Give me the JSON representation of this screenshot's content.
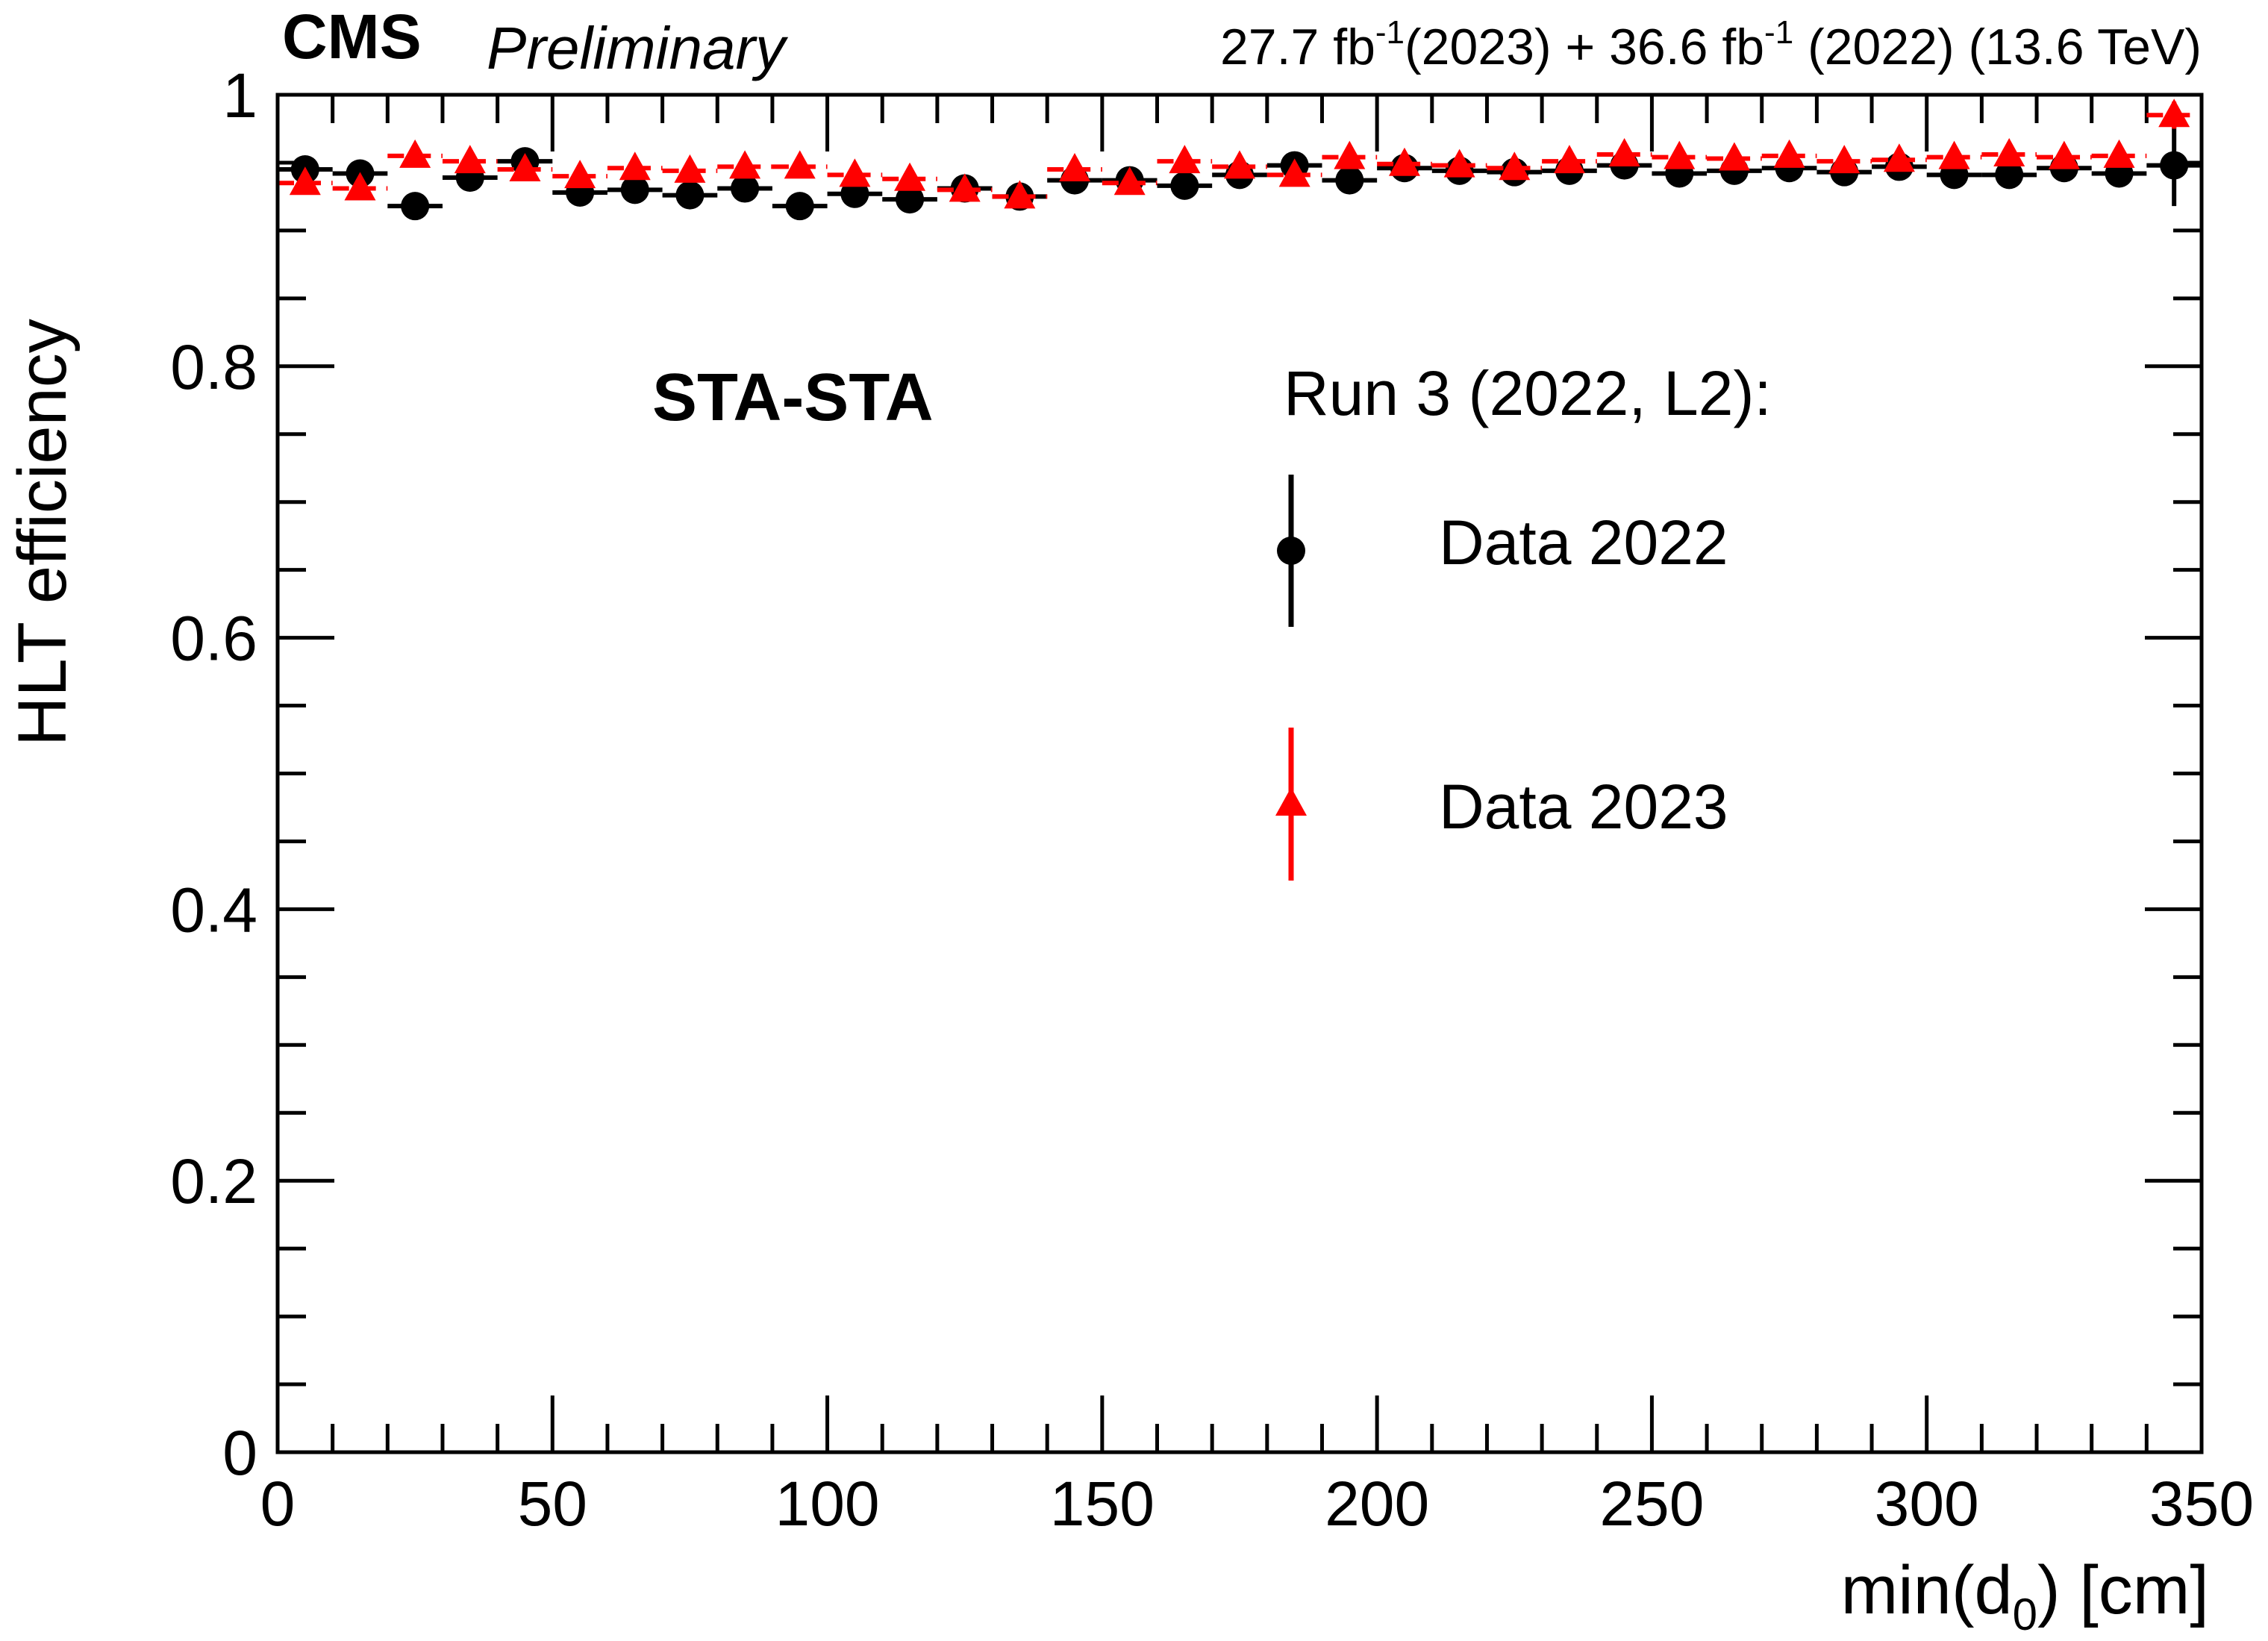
{
  "header": {
    "experiment": "CMS",
    "status": "Preliminary",
    "lumi_2023": "27.7 fb",
    "lumi_2023_exp": "-1",
    "lumi_2023_year": "(2023) + 36.6 fb",
    "lumi_2022_exp": "-1",
    "lumi_2022_tail": " (2022) (13.6 TeV)"
  },
  "annotation": "STA-STA",
  "legend": {
    "title": "Run 3 (2022, L2):",
    "entries": [
      "Data 2022",
      "Data 2023"
    ]
  },
  "axes": {
    "ylabel": "HLT efficiency",
    "xlabel_main": "min(d",
    "xlabel_sub": "0",
    "xlabel_tail": ") [cm]"
  },
  "colors": {
    "data_2022": "#000000",
    "data_2023": "#ff0000"
  },
  "chart_data": {
    "type": "scatter",
    "xlim": [
      0,
      350
    ],
    "ylim": [
      0,
      1
    ],
    "x_ticks": [
      0,
      50,
      100,
      150,
      200,
      250,
      300,
      350
    ],
    "x_tick_labels": [
      "0",
      "50",
      "100",
      "150",
      "200",
      "250",
      "300",
      "350"
    ],
    "y_ticks": [
      0,
      0.2,
      0.4,
      0.6,
      0.8,
      1
    ],
    "y_tick_labels": [
      "0",
      "0.2",
      "0.4",
      "0.6",
      "0.8",
      "1"
    ],
    "grid": false,
    "legend_position": "right-center",
    "x": [
      5,
      15,
      25,
      35,
      45,
      55,
      65,
      75,
      85,
      95,
      105,
      115,
      125,
      135,
      145,
      155,
      165,
      175,
      185,
      195,
      205,
      215,
      225,
      235,
      245,
      255,
      265,
      275,
      285,
      295,
      305,
      315,
      325,
      335,
      345
    ],
    "x_bin_half_width": 5,
    "series": [
      {
        "name": "Data 2022",
        "marker": "circle",
        "values": [
          0.945,
          0.942,
          0.918,
          0.939,
          0.951,
          0.928,
          0.93,
          0.926,
          0.931,
          0.918,
          0.927,
          0.923,
          0.931,
          0.925,
          0.937,
          0.937,
          0.933,
          0.941,
          0.948,
          0.937,
          0.946,
          0.944,
          0.943,
          0.944,
          0.948,
          0.942,
          0.944,
          0.946,
          0.943,
          0.947,
          0.941,
          0.941,
          0.946,
          0.942,
          0.948
        ],
        "errors": [
          0.004,
          0.004,
          0.004,
          0.004,
          0.004,
          0.004,
          0.004,
          0.004,
          0.004,
          0.004,
          0.004,
          0.004,
          0.004,
          0.004,
          0.004,
          0.004,
          0.004,
          0.004,
          0.004,
          0.004,
          0.004,
          0.004,
          0.004,
          0.004,
          0.004,
          0.004,
          0.004,
          0.004,
          0.004,
          0.004,
          0.004,
          0.004,
          0.004,
          0.004,
          0.03
        ]
      },
      {
        "name": "Data 2023",
        "marker": "triangle",
        "values": [
          0.935,
          0.931,
          0.955,
          0.951,
          0.945,
          0.94,
          0.946,
          0.944,
          0.947,
          0.947,
          0.941,
          0.938,
          0.93,
          0.925,
          0.945,
          0.935,
          0.951,
          0.947,
          0.941,
          0.954,
          0.949,
          0.948,
          0.946,
          0.951,
          0.956,
          0.954,
          0.953,
          0.955,
          0.951,
          0.952,
          0.954,
          0.956,
          0.954,
          0.955,
          0.985
        ],
        "errors": [
          0.004,
          0.004,
          0.004,
          0.004,
          0.004,
          0.004,
          0.004,
          0.004,
          0.004,
          0.004,
          0.004,
          0.004,
          0.004,
          0.004,
          0.004,
          0.004,
          0.004,
          0.004,
          0.004,
          0.004,
          0.004,
          0.004,
          0.004,
          0.004,
          0.004,
          0.004,
          0.004,
          0.004,
          0.004,
          0.004,
          0.004,
          0.004,
          0.004,
          0.004,
          0.01
        ]
      }
    ]
  }
}
